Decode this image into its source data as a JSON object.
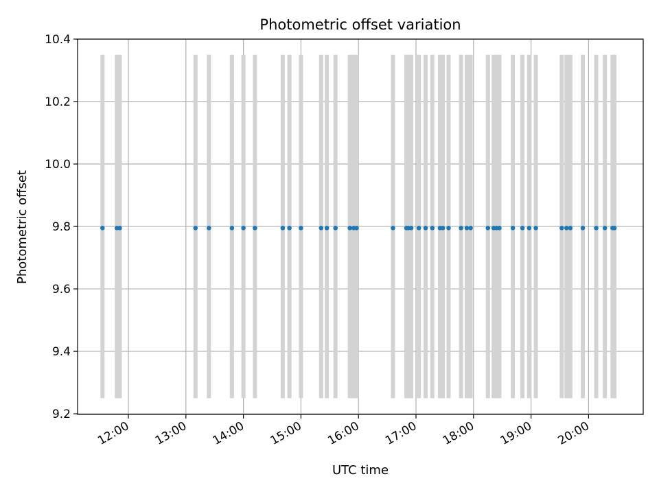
{
  "chart_data": {
    "type": "scatter",
    "title": "Photometric offset variation",
    "xlabel": "UTC time",
    "ylabel": "Photometric offset",
    "xlim": [
      "11:07",
      "20:57"
    ],
    "ylim": [
      9.198,
      10.4
    ],
    "x_ticks": [
      "12:00",
      "13:00",
      "14:00",
      "15:00",
      "16:00",
      "17:00",
      "18:00",
      "19:00",
      "20:00"
    ],
    "y_ticks": [
      "9.2",
      "9.4",
      "9.6",
      "9.8",
      "10.0",
      "10.2",
      "10.4"
    ],
    "y_tick_values": [
      9.2,
      9.4,
      9.6,
      9.8,
      10.0,
      10.2,
      10.4
    ],
    "grid": true,
    "error_bar_range": [
      9.25,
      10.35
    ],
    "series": [
      {
        "marker_color": "#1f77b4",
        "error_bar_color": "#d3d3d3",
        "x": [
          "11:33",
          "11:48",
          "11:51",
          "13:10",
          "13:24",
          "13:48",
          "14:00",
          "14:12",
          "14:41",
          "14:48",
          "15:00",
          "15:21",
          "15:27",
          "15:36",
          "15:51",
          "15:55",
          "15:58",
          "16:36",
          "16:50",
          "16:52",
          "16:55",
          "17:03",
          "17:10",
          "17:17",
          "17:25",
          "17:28",
          "17:34",
          "17:47",
          "17:53",
          "17:57",
          "18:15",
          "18:21",
          "18:24",
          "18:27",
          "18:41",
          "18:51",
          "18:58",
          "19:05",
          "19:32",
          "19:37",
          "19:41",
          "19:54",
          "20:08",
          "20:17",
          "20:25",
          "20:27"
        ],
        "y": [
          9.795,
          9.795,
          9.795,
          9.795,
          9.795,
          9.795,
          9.795,
          9.795,
          9.795,
          9.795,
          9.795,
          9.795,
          9.795,
          9.795,
          9.795,
          9.795,
          9.795,
          9.795,
          9.795,
          9.795,
          9.795,
          9.795,
          9.795,
          9.795,
          9.795,
          9.795,
          9.795,
          9.795,
          9.795,
          9.795,
          9.795,
          9.795,
          9.795,
          9.795,
          9.795,
          9.795,
          9.795,
          9.795,
          9.795,
          9.795,
          9.795,
          9.795,
          9.795,
          9.795,
          9.795,
          9.795
        ]
      }
    ]
  }
}
